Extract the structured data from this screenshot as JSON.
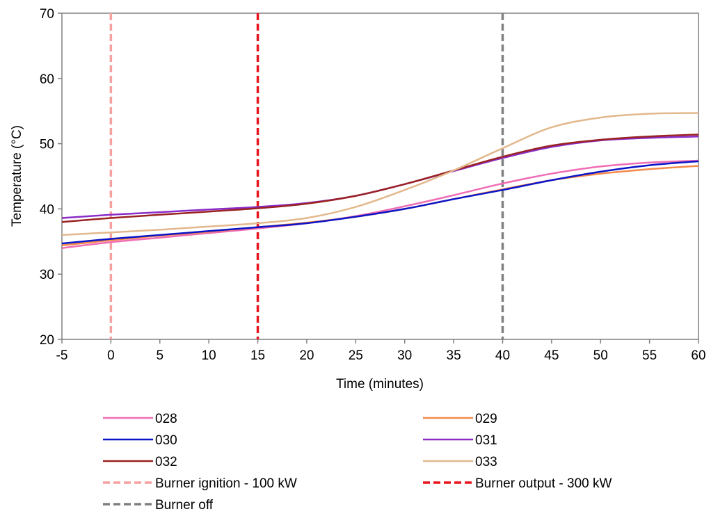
{
  "chart_data": {
    "type": "line",
    "title": "",
    "xlabel": "Time (minutes)",
    "ylabel": "Temperature (°C)",
    "xlim": [
      -5,
      60
    ],
    "ylim": [
      20,
      70
    ],
    "xticks": [
      -5,
      0,
      5,
      10,
      15,
      20,
      25,
      30,
      35,
      40,
      45,
      50,
      55,
      60
    ],
    "yticks": [
      20,
      30,
      40,
      50,
      60,
      70
    ],
    "grid": false,
    "legend_position": "bottom",
    "x": [
      -5,
      0,
      5,
      10,
      15,
      20,
      25,
      30,
      35,
      40,
      45,
      50,
      55,
      60
    ],
    "series": [
      {
        "name": "028",
        "color": "#f06cb4",
        "values": [
          34.0,
          34.9,
          35.6,
          36.3,
          37.0,
          37.8,
          38.9,
          40.4,
          42.1,
          43.9,
          45.4,
          46.5,
          47.1,
          47.4
        ]
      },
      {
        "name": "029",
        "color": "#f4894a",
        "values": [
          34.4,
          35.2,
          35.9,
          36.5,
          37.2,
          37.9,
          38.8,
          40.0,
          41.5,
          43.0,
          44.4,
          45.4,
          46.1,
          46.6
        ]
      },
      {
        "name": "030",
        "color": "#0a14c8",
        "values": [
          34.7,
          35.4,
          36.0,
          36.6,
          37.2,
          37.8,
          38.8,
          40.0,
          41.5,
          42.9,
          44.4,
          45.7,
          46.7,
          47.3
        ]
      },
      {
        "name": "031",
        "color": "#8a2cc8",
        "values": [
          38.6,
          39.1,
          39.5,
          39.9,
          40.3,
          40.9,
          42.0,
          43.8,
          45.8,
          47.8,
          49.5,
          50.5,
          50.9,
          51.1
        ]
      },
      {
        "name": "032",
        "color": "#9a2222",
        "values": [
          38.0,
          38.6,
          39.1,
          39.6,
          40.1,
          40.8,
          42.0,
          43.8,
          45.9,
          48.0,
          49.7,
          50.6,
          51.1,
          51.4
        ]
      },
      {
        "name": "033",
        "color": "#e2b88c",
        "values": [
          36.0,
          36.4,
          36.8,
          37.3,
          37.8,
          38.6,
          40.3,
          42.9,
          45.9,
          49.3,
          52.5,
          54.0,
          54.6,
          54.7
        ]
      }
    ],
    "reference_lines": [
      {
        "name": "Burner ignition - 100 kW",
        "x": 0,
        "color": "#f7a0a0"
      },
      {
        "name": "Burner output - 300 kW",
        "x": 15,
        "color": "#e8141e"
      },
      {
        "name": "Burner off",
        "x": 40,
        "color": "#808080"
      }
    ]
  }
}
